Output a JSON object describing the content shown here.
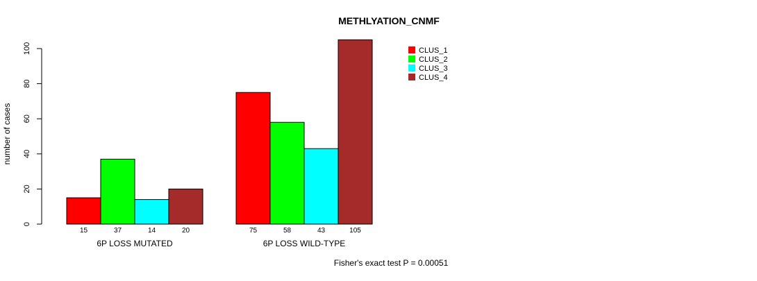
{
  "chart_data": {
    "type": "bar",
    "title": "METHLYATION_CNMF",
    "ylabel": "number of cases",
    "xlabel": "",
    "ylim": [
      0,
      105
    ],
    "yticks": [
      0,
      20,
      40,
      60,
      80,
      100
    ],
    "grid": false,
    "legend_position": "top-right",
    "groups": [
      "6P LOSS MUTATED",
      "6P LOSS WILD-TYPE"
    ],
    "series": [
      {
        "name": "CLUS_1",
        "color": "#ff0000",
        "values": [
          15,
          75
        ]
      },
      {
        "name": "CLUS_2",
        "color": "#00ff00",
        "values": [
          37,
          58
        ]
      },
      {
        "name": "CLUS_3",
        "color": "#00ffff",
        "values": [
          14,
          43
        ]
      },
      {
        "name": "CLUS_4",
        "color": "#a52a2a",
        "values": [
          20,
          105
        ]
      }
    ],
    "bar_labels": [
      [
        "15",
        "37",
        "14",
        "20"
      ],
      [
        "75",
        "58",
        "43",
        "105"
      ]
    ],
    "footnote": "Fisher's exact test P = 0.00051"
  }
}
